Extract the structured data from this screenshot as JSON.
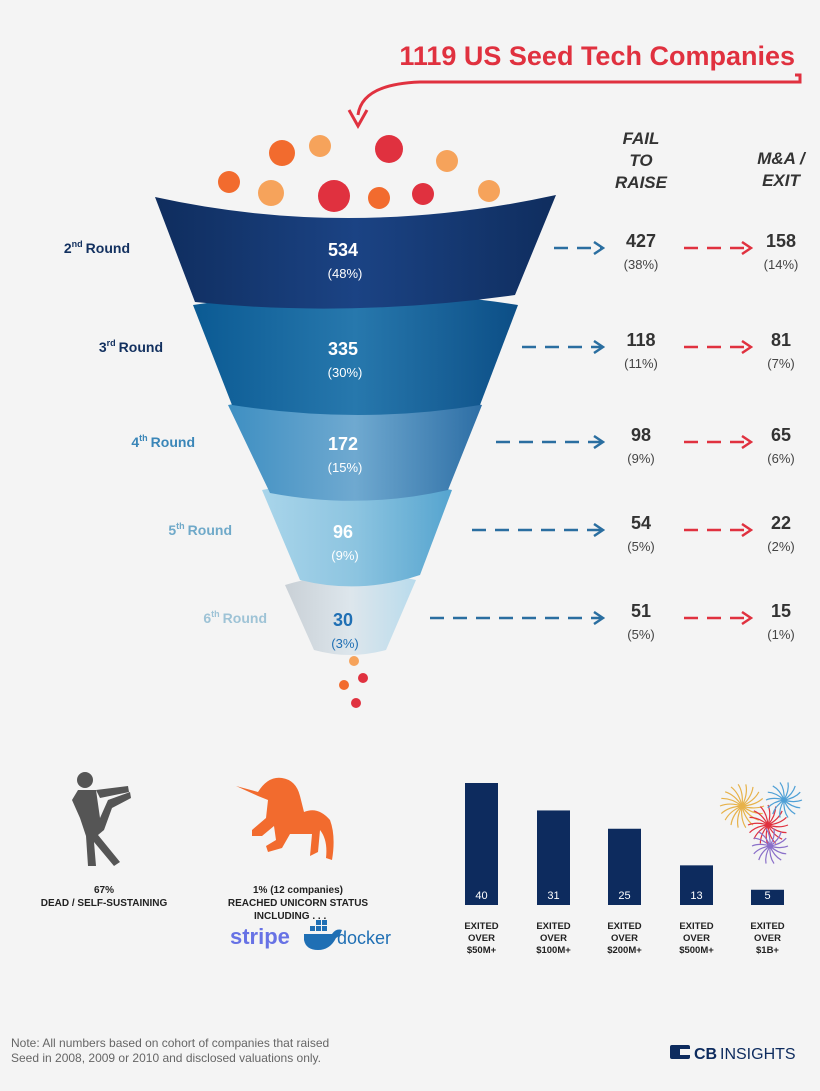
{
  "header": {
    "title": "1119 US Seed Tech Companies"
  },
  "columns": {
    "fail_label": [
      "FAIL",
      "TO",
      "RAISE"
    ],
    "exit_label": [
      "M&A /",
      "EXIT"
    ]
  },
  "funnel": [
    {
      "round_num": "2",
      "round_sup": "nd",
      "round_word": "Round",
      "count": "534",
      "pct": "(48%)",
      "fail": "427",
      "fail_pct": "(38%)",
      "exit": "158",
      "exit_pct": "(14%)"
    },
    {
      "round_num": "3",
      "round_sup": "rd",
      "round_word": "Round",
      "count": "335",
      "pct": "(30%)",
      "fail": "118",
      "fail_pct": "(11%)",
      "exit": "81",
      "exit_pct": "(7%)"
    },
    {
      "round_num": "4",
      "round_sup": "th",
      "round_word": "Round",
      "count": "172",
      "pct": "(15%)",
      "fail": "98",
      "fail_pct": "(9%)",
      "exit": "65",
      "exit_pct": "(6%)"
    },
    {
      "round_num": "5",
      "round_sup": "th",
      "round_word": "Round",
      "count": "96",
      "pct": "(9%)",
      "fail": "54",
      "fail_pct": "(5%)",
      "exit": "22",
      "exit_pct": "(2%)"
    },
    {
      "round_num": "6",
      "round_sup": "th",
      "round_word": "Round",
      "count": "30",
      "pct": "(3%)",
      "fail": "51",
      "fail_pct": "(5%)",
      "exit": "15",
      "exit_pct": "(1%)"
    }
  ],
  "bottom": {
    "dead_pct": "67%",
    "dead_label": "DEAD / SELF-SUSTAINING",
    "unicorn_line1": "1%  (12 companies)",
    "unicorn_line2": "REACHED UNICORN STATUS",
    "unicorn_line3": "INCLUDING . . .",
    "logo_stripe": "stripe",
    "logo_docker": "docker"
  },
  "chart_data": {
    "type": "bar",
    "categories": [
      "EXITED OVER $50M+",
      "EXITED OVER $100M+",
      "EXITED OVER $200M+",
      "EXITED OVER $500M+",
      "EXITED OVER $1B+"
    ],
    "category_lines": [
      [
        "EXITED",
        "OVER",
        "$50M+"
      ],
      [
        "EXITED",
        "OVER",
        "$100M+"
      ],
      [
        "EXITED",
        "OVER",
        "$200M+"
      ],
      [
        "EXITED",
        "OVER",
        "$500M+"
      ],
      [
        "EXITED",
        "OVER",
        "$1B+"
      ]
    ],
    "values": [
      40,
      31,
      25,
      13,
      5
    ],
    "bar_color": "#0d2b5e"
  },
  "footer": {
    "note_line1": "Note: All numbers based on cohort of companies that raised",
    "note_line2": "Seed in 2008, 2009 or 2010 and disclosed valuations only.",
    "brand_cb": "CB",
    "brand_insights": "INSIGHTS"
  },
  "colors": {
    "red": "#e0313f",
    "navy": "#12305f",
    "teal_arrow": "#2a6ea0",
    "band1": "#14346a",
    "band2": "#0f5a8f",
    "band3": "#3a86b8",
    "band4": "#6bb2d6",
    "band5": "#c3d0d8"
  }
}
